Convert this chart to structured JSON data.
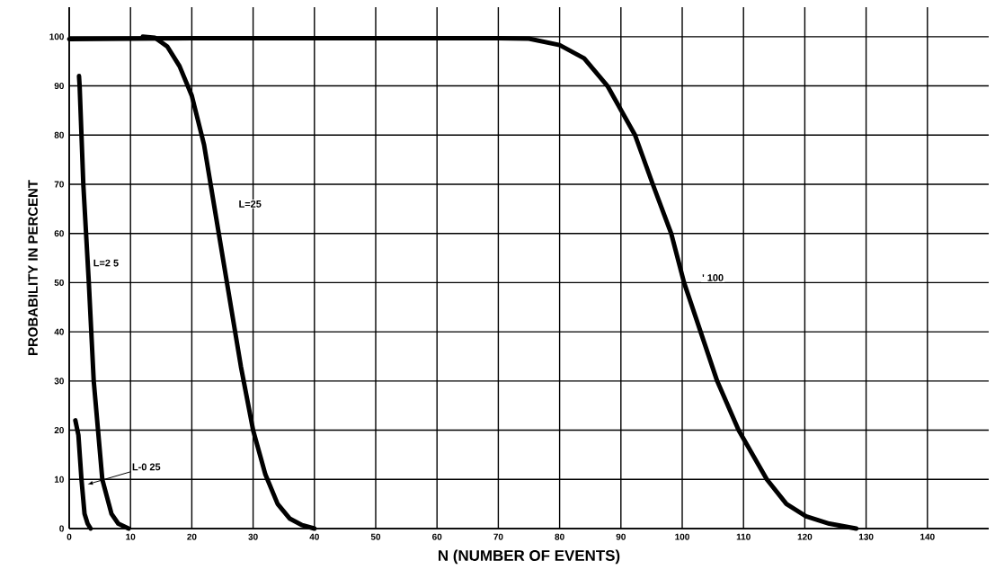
{
  "chart_data": {
    "type": "line",
    "xlabel": "N  (NUMBER OF EVENTS)",
    "ylabel": "PROBABILITY IN PERCENT",
    "xlim": [
      0,
      150
    ],
    "ylim": [
      0,
      106
    ],
    "xticks": [
      0,
      10,
      20,
      30,
      40,
      50,
      60,
      70,
      80,
      90,
      100,
      110,
      120,
      130,
      140
    ],
    "yticks": [
      0,
      10,
      20,
      30,
      40,
      50,
      60,
      70,
      80,
      90,
      100
    ],
    "grid": true,
    "marker": "none",
    "line_style": "solid",
    "series": [
      {
        "color": "#000000",
        "x": [
          1,
          1.5,
          2,
          2.5,
          3,
          3.5
        ],
        "values": [
          22,
          19,
          10,
          3,
          1,
          0
        ]
      },
      {
        "color": "#000000",
        "x": [
          1.6,
          1.7,
          2.3,
          3.2,
          4.0,
          5.4,
          6.9,
          8.0,
          9.7
        ],
        "values": [
          92,
          90,
          70,
          50,
          30,
          10,
          3,
          1,
          0
        ]
      },
      {
        "color": "#000000",
        "x": [
          12,
          14,
          16,
          18,
          20,
          22,
          24,
          26,
          28,
          30,
          32,
          34,
          36,
          38,
          40
        ],
        "values": [
          100,
          99.8,
          98,
          94,
          88,
          78,
          63,
          48,
          33,
          20,
          11,
          5,
          2,
          0.7,
          0
        ]
      },
      {
        "color": "#000000",
        "x": [
          0,
          20,
          50,
          70,
          75,
          80,
          84,
          87.8,
          92.3,
          95.2,
          98.2,
          100.3,
          103,
          105.7,
          109.2,
          113.8,
          117,
          120.2,
          124,
          128.4
        ],
        "values": [
          99.5,
          99.7,
          99.7,
          99.7,
          99.6,
          98.3,
          95.6,
          90,
          80,
          70,
          60,
          50,
          40,
          30,
          20,
          10,
          5,
          2.5,
          1,
          0
        ]
      }
    ],
    "annotations": [
      {
        "text": "L-0 25",
        "x": 3,
        "y": 9
      },
      {
        "text": "L=2 5",
        "x": 6,
        "y": 54
      },
      {
        "text": "L=25",
        "x": 29.5,
        "y": 66
      },
      {
        "text": "' 100",
        "x": 105,
        "y": 51
      }
    ]
  }
}
